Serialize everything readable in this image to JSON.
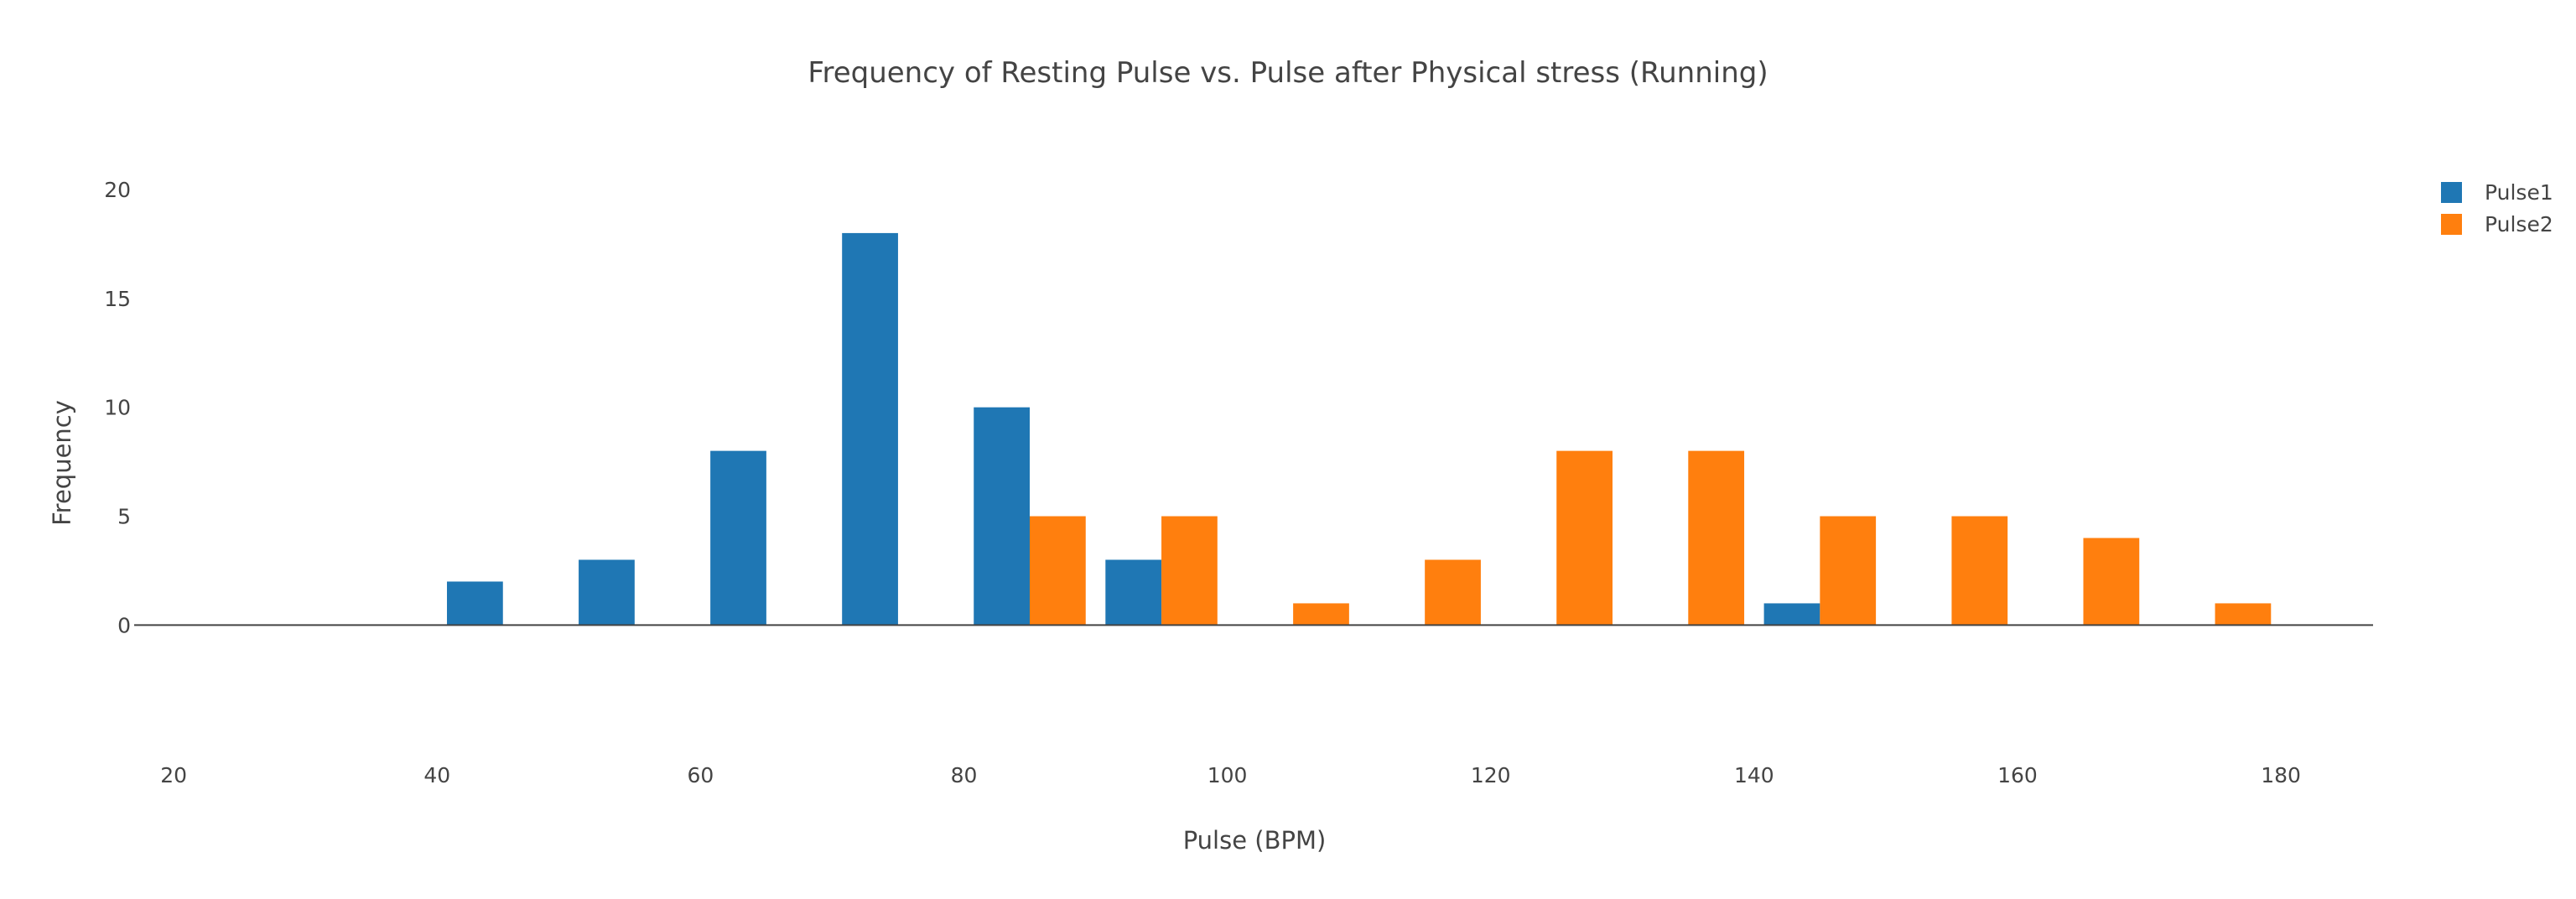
{
  "chart_data": {
    "type": "bar",
    "title": "Frequency of Resting Pulse vs. Pulse after Physical stress (Running)",
    "xlabel": "Pulse (BPM)",
    "ylabel": "Frequency",
    "xlim": [
      17,
      187
    ],
    "ylim": [
      -7.3,
      21
    ],
    "x_ticks": [
      20,
      40,
      60,
      80,
      100,
      120,
      140,
      160,
      180
    ],
    "y_ticks": [
      0,
      5,
      10,
      15,
      20
    ],
    "grid": false,
    "legend_position": "top-right",
    "bin_width": 10,
    "series": [
      {
        "name": "Pulse1",
        "color": "#1f77b4",
        "bins": [
          40,
          50,
          60,
          70,
          80,
          90,
          140
        ],
        "values": [
          2,
          3,
          8,
          18,
          10,
          3,
          1
        ]
      },
      {
        "name": "Pulse2",
        "color": "#ff7f0e",
        "bins": [
          80,
          90,
          100,
          110,
          120,
          130,
          140,
          150,
          160,
          170
        ],
        "values": [
          5,
          5,
          1,
          3,
          8,
          8,
          5,
          5,
          4,
          1
        ]
      }
    ]
  }
}
